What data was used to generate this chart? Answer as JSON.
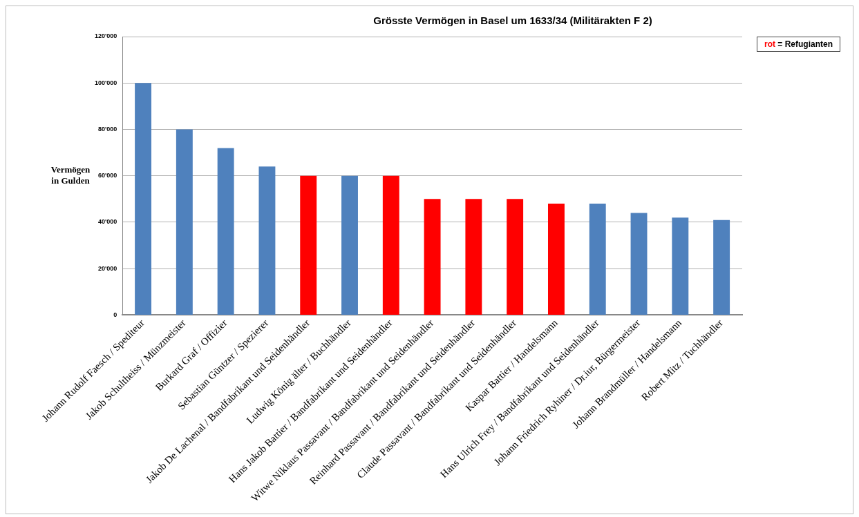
{
  "chart_data": {
    "type": "bar",
    "title": "Grösste Vermögen in Basel um 1633/34 (Militärakten F 2)",
    "ylabel": "Vermögen in Gulden",
    "categories": [
      "Johann Rudolf Faesch / Spediteur",
      "Jakob Schultheiss / Münzmeister",
      "Burkard Graf / Offizier",
      "Sebastian Güntzer / Spezierer",
      "Jakob De Lachenal / Bandfabrikant und Seidenhändler",
      "Ludwig König älter / Buchhändler",
      "Hans Jakob Battier / Bandfabrikant und Seidenhändler",
      "Witwe Niklaus Passavant / Bandfabrikant und Seidenhändler",
      "Reinhard Passavant / Bandfabrikant und Seidenhändler",
      "Claude Passavant / Bandfabrikant und Seidenhändler",
      "Kaspar Battier / Handelsmann",
      "Hans Ulrich Frey / Bandfabrikant und Seidenhändler",
      "Johann Friedrich Ryhiner / Dr.iur, Bürgermeister",
      "Johann Brandmüller / Handelsmann",
      "Robert Mitz / Tuchhändler"
    ],
    "values": [
      100000,
      80000,
      72000,
      64000,
      60000,
      60000,
      60000,
      50000,
      50000,
      50000,
      48000,
      48000,
      44000,
      42000,
      41000
    ],
    "colors": [
      "#4f81bd",
      "#4f81bd",
      "#4f81bd",
      "#4f81bd",
      "#ff0000",
      "#4f81bd",
      "#ff0000",
      "#ff0000",
      "#ff0000",
      "#ff0000",
      "#ff0000",
      "#4f81bd",
      "#4f81bd",
      "#4f81bd",
      "#4f81bd"
    ],
    "ylim": [
      0,
      120000
    ],
    "yticks": [
      {
        "value": 0,
        "label": "0"
      },
      {
        "value": 20000,
        "label": "20'000"
      },
      {
        "value": 40000,
        "label": "40'000"
      },
      {
        "value": 60000,
        "label": "60'000"
      },
      {
        "value": 80000,
        "label": "80'000"
      },
      {
        "value": 100000,
        "label": "100'000"
      },
      {
        "value": 120000,
        "label": "120'000"
      }
    ],
    "grid": "y",
    "legend": false,
    "annotations": [
      "rot = Refugianten"
    ]
  }
}
